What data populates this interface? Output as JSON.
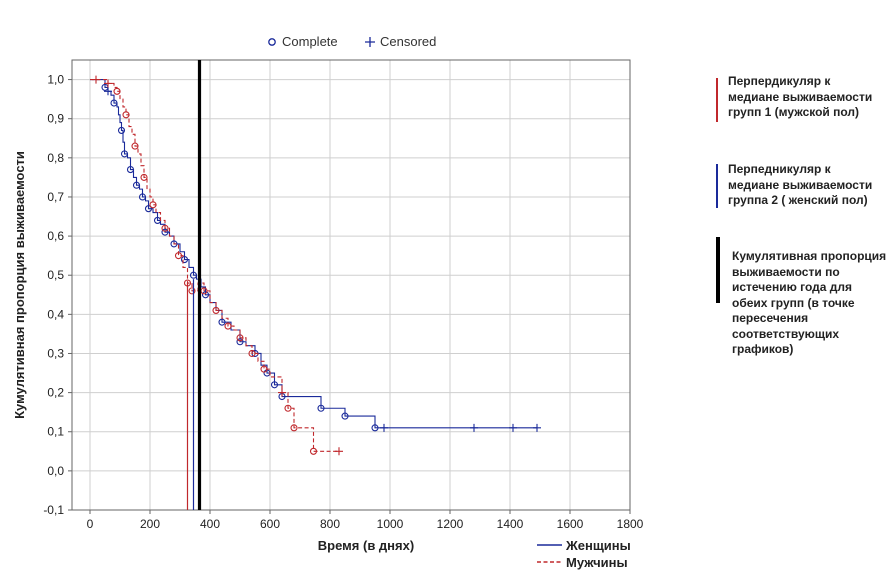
{
  "chart_data": {
    "type": "line",
    "title": "",
    "xlabel": "Время (в днях)",
    "ylabel": "Кумулятивная пропорция выживаемости",
    "xlim": [
      -60,
      1800
    ],
    "ylim": [
      -0.1,
      1.05
    ],
    "x_ticks": [
      0,
      200,
      400,
      600,
      800,
      1000,
      1200,
      1400,
      1600,
      1800
    ],
    "x_tick_labels": [
      "0",
      "200",
      "400",
      "600",
      "800",
      "1000",
      "1200",
      "1400",
      "1600",
      "1800"
    ],
    "y_ticks": [
      -0.1,
      0.0,
      0.1,
      0.2,
      0.3,
      0.4,
      0.5,
      0.6,
      0.7,
      0.8,
      0.9,
      1.0
    ],
    "y_tick_labels": [
      "-0,1",
      "0,0",
      "0,1",
      "0,2",
      "0,3",
      "0,4",
      "0,5",
      "0,6",
      "0,7",
      "0,8",
      "0,9",
      "1,0"
    ],
    "grid": true,
    "marker_legend": [
      {
        "symbol": "o",
        "label": "Complete",
        "color": "#1a2a9a"
      },
      {
        "symbol": "+",
        "label": "Censored",
        "color": "#1a2a9a"
      }
    ],
    "series": [
      {
        "name": "Женщины",
        "color": "#1a2a9a",
        "dash": "solid",
        "x": [
          0,
          50,
          60,
          70,
          80,
          90,
          95,
          100,
          105,
          110,
          115,
          125,
          135,
          145,
          155,
          165,
          175,
          185,
          195,
          210,
          225,
          235,
          250,
          265,
          280,
          300,
          315,
          330,
          345,
          355,
          370,
          385,
          400,
          420,
          440,
          470,
          500,
          520,
          550,
          570,
          590,
          615,
          640,
          770,
          850,
          950,
          1490
        ],
        "y": [
          1.0,
          0.98,
          0.97,
          0.96,
          0.94,
          0.93,
          0.91,
          0.89,
          0.87,
          0.84,
          0.81,
          0.8,
          0.77,
          0.75,
          0.73,
          0.72,
          0.7,
          0.69,
          0.67,
          0.66,
          0.64,
          0.63,
          0.61,
          0.6,
          0.58,
          0.56,
          0.54,
          0.52,
          0.5,
          0.49,
          0.47,
          0.45,
          0.43,
          0.41,
          0.38,
          0.36,
          0.33,
          0.32,
          0.3,
          0.27,
          0.25,
          0.22,
          0.19,
          0.16,
          0.14,
          0.11,
          0.11
        ],
        "complete_x": [
          50,
          80,
          105,
          115,
          135,
          155,
          175,
          195,
          225,
          250,
          280,
          315,
          345,
          385,
          440,
          500,
          550,
          590,
          615,
          640,
          770,
          850,
          950
        ],
        "censored_x": [
          60,
          980,
          1280,
          1410,
          1490
        ]
      },
      {
        "name": "Мужчины",
        "color": "#c0282c",
        "dash": "dashed",
        "x": [
          0,
          60,
          80,
          90,
          100,
          110,
          120,
          130,
          140,
          150,
          160,
          170,
          180,
          190,
          200,
          210,
          220,
          235,
          250,
          265,
          280,
          295,
          310,
          325,
          340,
          360,
          380,
          400,
          420,
          440,
          460,
          480,
          500,
          520,
          540,
          560,
          580,
          600,
          620,
          640,
          660,
          680,
          745,
          830
        ],
        "y": [
          1.0,
          0.99,
          0.98,
          0.97,
          0.95,
          0.93,
          0.91,
          0.88,
          0.86,
          0.83,
          0.81,
          0.78,
          0.75,
          0.72,
          0.7,
          0.68,
          0.66,
          0.64,
          0.62,
          0.6,
          0.58,
          0.55,
          0.52,
          0.48,
          0.46,
          0.48,
          0.46,
          0.43,
          0.41,
          0.39,
          0.37,
          0.36,
          0.34,
          0.32,
          0.3,
          0.28,
          0.26,
          0.24,
          0.24,
          0.2,
          0.16,
          0.11,
          0.05,
          0.05
        ],
        "complete_x": [
          90,
          120,
          150,
          180,
          210,
          250,
          295,
          325,
          340,
          380,
          420,
          460,
          500,
          540,
          580,
          660,
          680,
          745
        ],
        "censored_x": [
          20,
          60,
          640,
          830
        ]
      }
    ],
    "reference_lines": [
      {
        "x": 325,
        "y_top": 0.48,
        "color": "#c0282c",
        "weight": "thin"
      },
      {
        "x": 345,
        "y_top": 0.49,
        "color": "#1a2a9a",
        "weight": "thin"
      },
      {
        "x": 365,
        "y_top": 1.05,
        "color": "#000000",
        "weight": "bold"
      }
    ]
  },
  "annotations": [
    {
      "text": "Перпердикуляр к\nмедиане выживаемости\nгрупп 1 (мужской пол)",
      "bar_color": "#c0282c"
    },
    {
      "text": "Перпедникуляр к\nмедиане выживаемости\nгруппа 2 ( женский пол)",
      "bar_color": "#1a2a9a"
    },
    {
      "text": "Кумулятивная пропорция\nвыживаемости по\nистечению года для\nобеих групп  (в точке\nпересечения\nсоответствующих\nграфиков)",
      "bar_color": "#000000"
    }
  ]
}
